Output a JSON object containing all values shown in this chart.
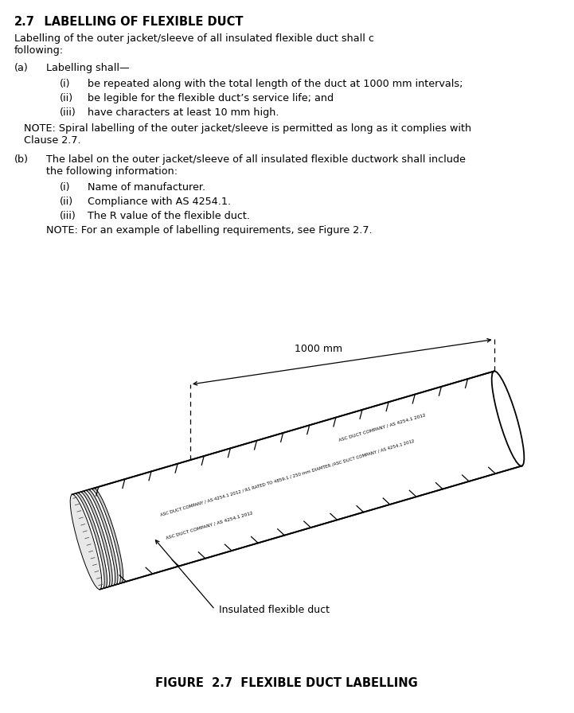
{
  "title_bold": "2.7",
  "title_rest": "   LABELLING OF FLEXIBLE DUCT",
  "para1": "Labelling of the outer jacket/sleeve of all insulated flexible duct shall comply with the following:",
  "a_label": "(a)",
  "a_text": "Labelling shall—",
  "i1_label": "(i)",
  "i1_text": "be repeated along with the total length of the duct at 1000 mm intervals;",
  "i2_label": "(ii)",
  "i2_text": "be legible for the flexible duct’s service life; and",
  "i3_label": "(iii)",
  "i3_text": "have characters at least 10 mm high.",
  "note1_line1": "NOTE: Spiral labelling of the outer jacket/sleeve is permitted as long as it complies with",
  "note1_line2": "Clause 2.7.",
  "b_label": "(b)",
  "b_text_line1": "The label on the outer jacket/sleeve of all insulated flexible ductwork shall include",
  "b_text_line2": "the following information:",
  "j1_label": "(i)",
  "j1_text": "Name of manufacturer.",
  "j2_label": "(ii)",
  "j2_text": "Compliance with AS 4254.1.",
  "j3_label": "(iii)",
  "j3_text": "The R value of the flexible duct.",
  "note2": "NOTE: For an example of labelling requirements, see Figure 2.7.",
  "dim_label": "1000 mm",
  "duct_label_upper": "ASC DUCT COMPANY / AS 4254.1 2012",
  "duct_label_mid": "ASC DUCT COMPANY / AS 4254.1 2012 / R1 RATED TO 4859.1 / 250 mm DIAMTER /ASC DUCT COMPANY / AS 4254.1 2012",
  "duct_label_lower": "ASC DUCT COMPANY / AS 4254.1 2012",
  "insulated_label": "Insulated flexible duct",
  "figure_caption": "FIGURE  2.7  FLEXIBLE DUCT LABELLING",
  "bg_color": "#ffffff",
  "text_color": "#000000"
}
